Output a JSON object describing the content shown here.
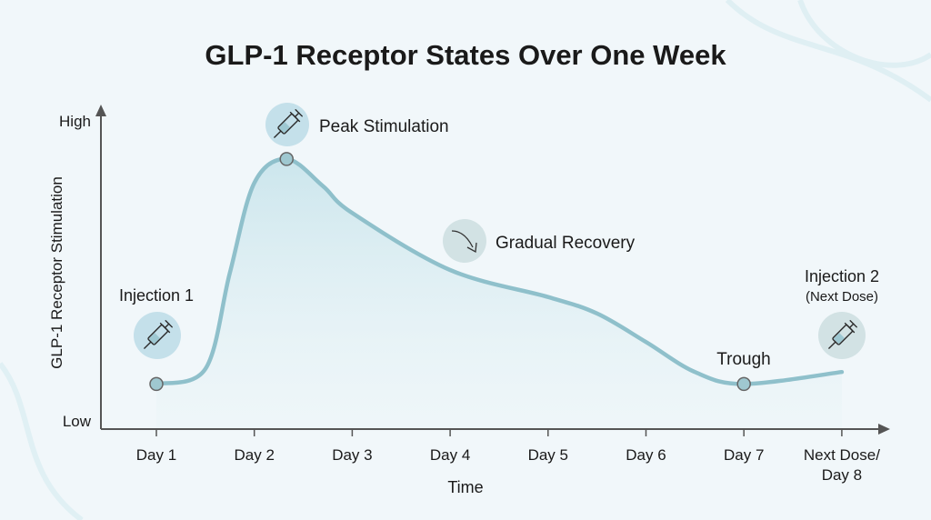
{
  "chart_data": {
    "type": "area",
    "title": "GLP-1 Receptor States Over One Week",
    "xlabel": "Time",
    "ylabel": "GLP-1 Receptor Stimulation",
    "y_tick_labels": [
      "Low",
      "High"
    ],
    "ylim": [
      0,
      1
    ],
    "categories": [
      "Day 1",
      "Day 2",
      "Day 3",
      "Day 4",
      "Day 5",
      "Day 6",
      "Day 7",
      "Next Dose/ Day 8"
    ],
    "grid": false,
    "series": [
      {
        "x": [
          1,
          1.5,
          1.75,
          2,
          2.33,
          2.7,
          3,
          4,
          5,
          5.5,
          6,
          6.5,
          7,
          8
        ],
        "y": [
          0.12,
          0.17,
          0.49,
          0.79,
          0.87,
          0.78,
          0.69,
          0.5,
          0.41,
          0.355,
          0.26,
          0.16,
          0.12,
          0.16
        ],
        "color": "#8fc0cb"
      }
    ],
    "markers": [
      {
        "x": 1,
        "y": 0.12
      },
      {
        "x": 2.33,
        "y": 0.87
      },
      {
        "x": 7,
        "y": 0.12
      }
    ],
    "annotations": [
      {
        "label": "Injection 1",
        "icon": "syringe-icon"
      },
      {
        "label": "Peak Stimulation",
        "icon": "syringe-icon"
      },
      {
        "label": "Gradual Recovery",
        "icon": "arrow-down-right-icon"
      },
      {
        "label": "Trough"
      },
      {
        "label": "Injection 2",
        "sublabel": "(Next Dose)",
        "icon": "syringe-icon"
      }
    ]
  }
}
